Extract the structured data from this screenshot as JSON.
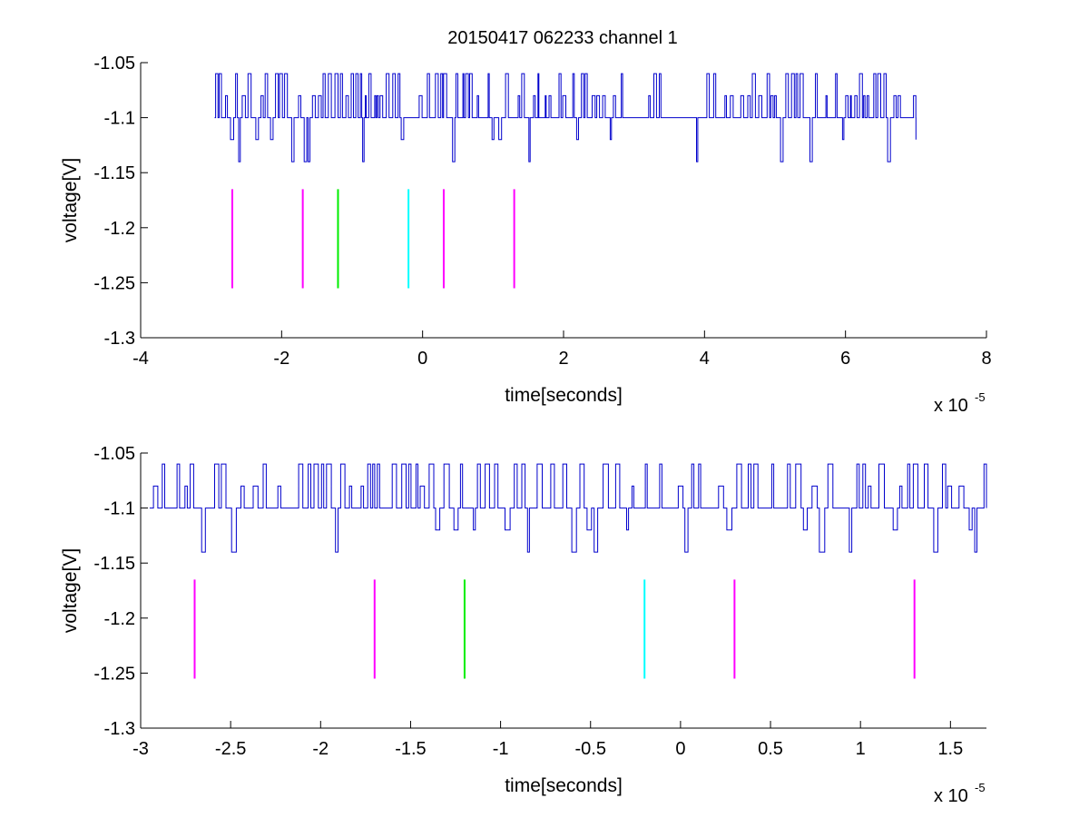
{
  "figure": {
    "title": "20150417 062233 channel 1"
  },
  "chart_data": [
    {
      "type": "line",
      "title": "20150417 062233 channel 1",
      "xlabel": "time[seconds]",
      "ylabel": "voltage[V]",
      "x_exponent_label": "x 10",
      "x_exponent_power": "-5",
      "xlim": [
        -4,
        8
      ],
      "ylim": [
        -1.3,
        -1.05
      ],
      "xticks": [
        -4,
        -2,
        0,
        2,
        4,
        6,
        8
      ],
      "xtick_labels": [
        "-4",
        "-2",
        "0",
        "2",
        "4",
        "6",
        "8"
      ],
      "yticks": [
        -1.3,
        -1.25,
        -1.2,
        -1.15,
        -1.1,
        -1.05
      ],
      "ytick_labels": [
        "-1.3",
        "-1.25",
        "-1.2",
        "-1.15",
        "-1.1",
        "-1.05"
      ],
      "grid": false,
      "series": [
        {
          "kind": "digitized-signal",
          "color": "#0000cc",
          "x_range": [
            -2.95,
            7.0
          ],
          "levels": [
            -1.14,
            -1.1,
            -1.08,
            -1.06
          ],
          "baseline": -1.1,
          "segments": [
            {
              "x": [
                -2.95,
                7.0
              ],
              "pattern": "dense high-frequency toggling between -1.1 and -1.06/-1.08 with occasional drops to -1.14"
            },
            {
              "x": [
                2.6,
                4.0
              ],
              "pattern": "sparser activity"
            }
          ]
        },
        {
          "kind": "event-markers",
          "y_range": [
            -1.255,
            -1.165
          ],
          "markers": [
            {
              "x": -2.7,
              "color": "#ff00ff"
            },
            {
              "x": -1.7,
              "color": "#ff00ff"
            },
            {
              "x": -1.2,
              "color": "#00ee00"
            },
            {
              "x": -0.2,
              "color": "#00ffff"
            },
            {
              "x": 0.3,
              "color": "#ff00ff"
            },
            {
              "x": 1.3,
              "color": "#ff00ff"
            }
          ]
        }
      ]
    },
    {
      "type": "line",
      "title": "",
      "xlabel": "time[seconds]",
      "ylabel": "voltage[V]",
      "x_exponent_label": "x 10",
      "x_exponent_power": "-5",
      "xlim": [
        -3.0,
        1.7
      ],
      "ylim": [
        -1.3,
        -1.05
      ],
      "xticks": [
        -3,
        -2.5,
        -2,
        -1.5,
        -1,
        -0.5,
        0,
        0.5,
        1,
        1.5
      ],
      "xtick_labels": [
        "-3",
        "-2.5",
        "-2",
        "-1.5",
        "-1",
        "-0.5",
        "0",
        "0.5",
        "1",
        "1.5"
      ],
      "yticks": [
        -1.3,
        -1.25,
        -1.2,
        -1.15,
        -1.1,
        -1.05
      ],
      "ytick_labels": [
        "-1.3",
        "-1.25",
        "-1.2",
        "-1.15",
        "-1.1",
        "-1.05"
      ],
      "grid": false,
      "series": [
        {
          "kind": "digitized-signal",
          "color": "#0000cc",
          "x_range": [
            -2.95,
            1.7
          ],
          "levels": [
            -1.14,
            -1.12,
            -1.1,
            -1.08,
            -1.06
          ],
          "baseline": -1.1,
          "pattern": "zoomed view of the same toggling signal between -1.1 and -1.06, dipping to -1.14"
        },
        {
          "kind": "event-markers",
          "y_range": [
            -1.255,
            -1.165
          ],
          "markers": [
            {
              "x": -2.7,
              "color": "#ff00ff"
            },
            {
              "x": -1.7,
              "color": "#ff00ff"
            },
            {
              "x": -1.2,
              "color": "#00ee00"
            },
            {
              "x": -0.2,
              "color": "#00ffff"
            },
            {
              "x": 0.3,
              "color": "#ff00ff"
            },
            {
              "x": 1.3,
              "color": "#ff00ff"
            }
          ]
        }
      ]
    }
  ]
}
